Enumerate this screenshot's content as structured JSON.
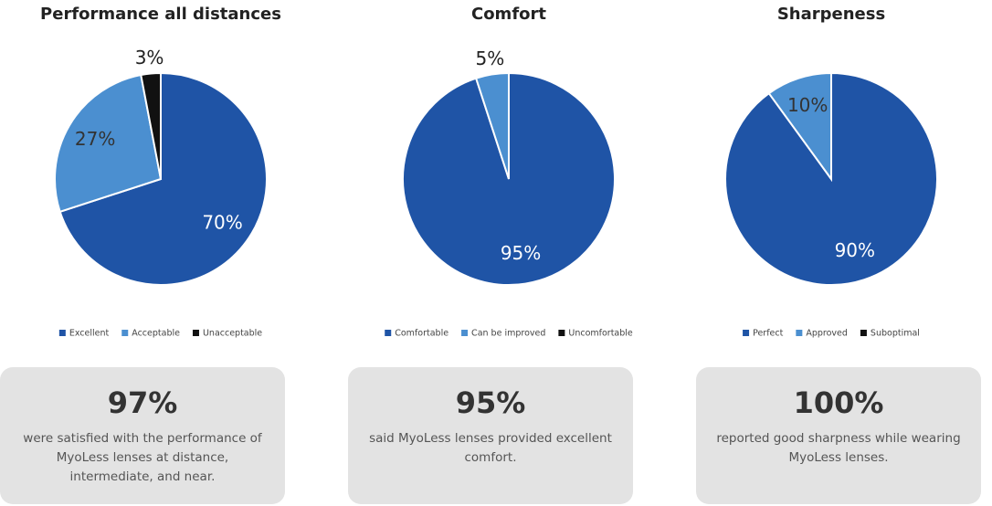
{
  "chart_data": [
    {
      "type": "pie",
      "title": "Performance all distances",
      "categories": [
        "Excellent",
        "Acceptable",
        "Unacceptable"
      ],
      "values": [
        70,
        27,
        3
      ],
      "value_labels": [
        "70%",
        "27%",
        "3%"
      ],
      "colors": [
        "#1f54a6",
        "#4b8fd0",
        "#111111"
      ]
    },
    {
      "type": "pie",
      "title": "Comfort",
      "categories": [
        "Comfortable",
        "Can be improved",
        "Uncomfortable"
      ],
      "values": [
        95,
        5,
        0
      ],
      "value_labels": [
        "95%",
        "5%",
        null
      ],
      "colors": [
        "#1f54a6",
        "#4b8fd0",
        "#111111"
      ]
    },
    {
      "type": "pie",
      "title": "Sharpeness",
      "categories": [
        "Perfect",
        "Approved",
        "Suboptimal"
      ],
      "values": [
        90,
        10,
        0
      ],
      "value_labels": [
        "90%",
        "10%",
        null
      ],
      "colors": [
        "#1f54a6",
        "#4b8fd0",
        "#111111"
      ]
    }
  ],
  "cards": [
    {
      "value": "97%",
      "text": "were satisfied with the performance of MyoLess lenses at distance, intermediate, and near."
    },
    {
      "value": "95%",
      "text": "said MyoLess lenses provided excellent comfort."
    },
    {
      "value": "100%",
      "text": "reported good sharpness while wearing MyoLess lenses."
    }
  ]
}
